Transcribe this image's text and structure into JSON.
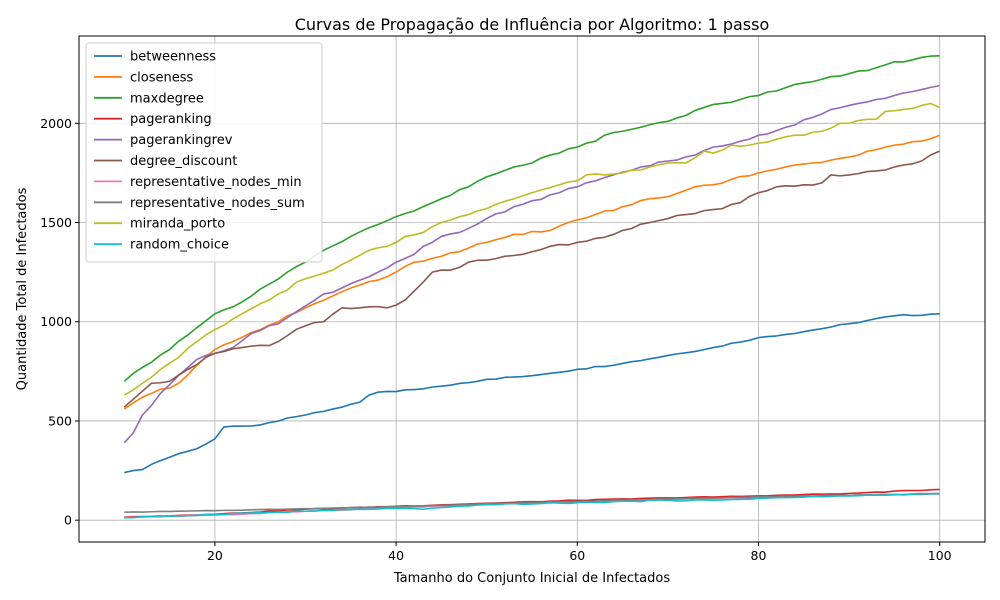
{
  "chart_data": {
    "type": "line",
    "title": "Curvas de Propagação de Influência por Algoritmo: 1 passo",
    "xlabel": "Tamanho do Conjunto Inicial de Infectados",
    "ylabel": "Quantidade Total de Infectados",
    "xlim": [
      5,
      105
    ],
    "ylim": [
      -110,
      2440
    ],
    "xticks": [
      20,
      40,
      60,
      80,
      100
    ],
    "yticks": [
      0,
      500,
      1000,
      1500,
      2000
    ],
    "grid": true,
    "legend": "top-left",
    "x_range": [
      10,
      100
    ],
    "series": [
      {
        "name": "betweenness",
        "color": "#1f77b4",
        "anchors": [
          [
            10,
            240
          ],
          [
            12,
            255
          ],
          [
            14,
            300
          ],
          [
            16,
            335
          ],
          [
            18,
            360
          ],
          [
            20,
            410
          ],
          [
            21,
            470
          ],
          [
            25,
            480
          ],
          [
            28,
            515
          ],
          [
            30,
            530
          ],
          [
            33,
            560
          ],
          [
            36,
            595
          ],
          [
            37,
            630
          ],
          [
            38,
            645
          ],
          [
            40,
            648
          ],
          [
            45,
            675
          ],
          [
            50,
            710
          ],
          [
            55,
            728
          ],
          [
            57,
            740
          ],
          [
            60,
            760
          ],
          [
            65,
            790
          ],
          [
            70,
            830
          ],
          [
            75,
            870
          ],
          [
            80,
            920
          ],
          [
            85,
            950
          ],
          [
            90,
            990
          ],
          [
            95,
            1030
          ],
          [
            100,
            1040
          ]
        ],
        "noise": 4
      },
      {
        "name": "closeness",
        "color": "#ff7f0e",
        "anchors": [
          [
            10,
            560
          ],
          [
            12,
            620
          ],
          [
            14,
            660
          ],
          [
            15,
            665
          ],
          [
            16,
            690
          ],
          [
            18,
            780
          ],
          [
            20,
            860
          ],
          [
            22,
            900
          ],
          [
            25,
            960
          ],
          [
            27,
            1000
          ],
          [
            28,
            1030
          ],
          [
            30,
            1070
          ],
          [
            33,
            1130
          ],
          [
            35,
            1170
          ],
          [
            38,
            1210
          ],
          [
            40,
            1250
          ],
          [
            42,
            1300
          ],
          [
            45,
            1330
          ],
          [
            50,
            1400
          ],
          [
            53,
            1440
          ],
          [
            57,
            1460
          ],
          [
            59,
            1500
          ],
          [
            62,
            1540
          ],
          [
            66,
            1590
          ],
          [
            68,
            1620
          ],
          [
            70,
            1630
          ],
          [
            73,
            1680
          ],
          [
            75,
            1690
          ],
          [
            80,
            1750
          ],
          [
            83,
            1780
          ],
          [
            86,
            1800
          ],
          [
            90,
            1830
          ],
          [
            95,
            1890
          ],
          [
            98,
            1910
          ],
          [
            100,
            1940
          ]
        ],
        "noise": 6
      },
      {
        "name": "maxdegree",
        "color": "#2ca02c",
        "anchors": [
          [
            10,
            700
          ],
          [
            12,
            770
          ],
          [
            15,
            860
          ],
          [
            18,
            970
          ],
          [
            20,
            1040
          ],
          [
            23,
            1100
          ],
          [
            26,
            1190
          ],
          [
            28,
            1250
          ],
          [
            30,
            1300
          ],
          [
            32,
            1360
          ],
          [
            35,
            1430
          ],
          [
            38,
            1490
          ],
          [
            40,
            1530
          ],
          [
            43,
            1580
          ],
          [
            45,
            1620
          ],
          [
            48,
            1680
          ],
          [
            50,
            1730
          ],
          [
            53,
            1780
          ],
          [
            55,
            1800
          ],
          [
            57,
            1840
          ],
          [
            60,
            1880
          ],
          [
            62,
            1910
          ],
          [
            63,
            1940
          ],
          [
            65,
            1960
          ],
          [
            67,
            1980
          ],
          [
            70,
            2010
          ],
          [
            72,
            2040
          ],
          [
            74,
            2080
          ],
          [
            76,
            2100
          ],
          [
            78,
            2120
          ],
          [
            80,
            2140
          ],
          [
            83,
            2180
          ],
          [
            86,
            2210
          ],
          [
            90,
            2250
          ],
          [
            93,
            2280
          ],
          [
            95,
            2310
          ],
          [
            97,
            2320
          ],
          [
            100,
            2340
          ]
        ],
        "noise": 6
      },
      {
        "name": "pageranking",
        "color": "#d62728",
        "anchors": [
          [
            10,
            15
          ],
          [
            20,
            30
          ],
          [
            30,
            55
          ],
          [
            40,
            70
          ],
          [
            50,
            85
          ],
          [
            60,
            100
          ],
          [
            70,
            112
          ],
          [
            80,
            122
          ],
          [
            90,
            135
          ],
          [
            100,
            155
          ]
        ],
        "noise": 2
      },
      {
        "name": "pagerankingrev",
        "color": "#9467bd",
        "anchors": [
          [
            10,
            390
          ],
          [
            11,
            440
          ],
          [
            12,
            530
          ],
          [
            14,
            640
          ],
          [
            16,
            730
          ],
          [
            18,
            810
          ],
          [
            20,
            840
          ],
          [
            22,
            870
          ],
          [
            24,
            940
          ],
          [
            27,
            990
          ],
          [
            30,
            1080
          ],
          [
            32,
            1140
          ],
          [
            34,
            1170
          ],
          [
            36,
            1210
          ],
          [
            38,
            1250
          ],
          [
            40,
            1300
          ],
          [
            42,
            1340
          ],
          [
            43,
            1380
          ],
          [
            45,
            1430
          ],
          [
            47,
            1450
          ],
          [
            50,
            1520
          ],
          [
            53,
            1580
          ],
          [
            55,
            1610
          ],
          [
            58,
            1650
          ],
          [
            60,
            1680
          ],
          [
            62,
            1710
          ],
          [
            64,
            1740
          ],
          [
            67,
            1780
          ],
          [
            70,
            1810
          ],
          [
            73,
            1840
          ],
          [
            75,
            1880
          ],
          [
            78,
            1910
          ],
          [
            80,
            1940
          ],
          [
            83,
            1980
          ],
          [
            86,
            2030
          ],
          [
            88,
            2070
          ],
          [
            90,
            2090
          ],
          [
            93,
            2120
          ],
          [
            95,
            2140
          ],
          [
            98,
            2170
          ],
          [
            100,
            2190
          ]
        ],
        "noise": 7
      },
      {
        "name": "degree_discount",
        "color": "#8c564b",
        "anchors": [
          [
            10,
            570
          ],
          [
            12,
            650
          ],
          [
            13,
            690
          ],
          [
            15,
            700
          ],
          [
            17,
            760
          ],
          [
            19,
            820
          ],
          [
            21,
            850
          ],
          [
            23,
            870
          ],
          [
            26,
            880
          ],
          [
            28,
            930
          ],
          [
            30,
            980
          ],
          [
            32,
            1000
          ],
          [
            34,
            1070
          ],
          [
            36,
            1070
          ],
          [
            39,
            1070
          ],
          [
            41,
            1110
          ],
          [
            43,
            1200
          ],
          [
            44,
            1250
          ],
          [
            46,
            1260
          ],
          [
            48,
            1300
          ],
          [
            50,
            1310
          ],
          [
            52,
            1330
          ],
          [
            54,
            1340
          ],
          [
            57,
            1380
          ],
          [
            60,
            1400
          ],
          [
            62,
            1420
          ],
          [
            64,
            1440
          ],
          [
            66,
            1470
          ],
          [
            68,
            1500
          ],
          [
            70,
            1520
          ],
          [
            72,
            1540
          ],
          [
            74,
            1560
          ],
          [
            76,
            1570
          ],
          [
            78,
            1600
          ],
          [
            80,
            1650
          ],
          [
            82,
            1680
          ],
          [
            85,
            1690
          ],
          [
            87,
            1700
          ],
          [
            88,
            1740
          ],
          [
            90,
            1740
          ],
          [
            93,
            1760
          ],
          [
            95,
            1780
          ],
          [
            98,
            1810
          ],
          [
            100,
            1860
          ]
        ],
        "noise": 7
      },
      {
        "name": "representative_nodes_min",
        "color": "#e377c2",
        "anchors": [
          [
            10,
            12
          ],
          [
            20,
            25
          ],
          [
            30,
            45
          ],
          [
            40,
            62
          ],
          [
            50,
            80
          ],
          [
            60,
            92
          ],
          [
            70,
            105
          ],
          [
            80,
            115
          ],
          [
            90,
            125
          ],
          [
            100,
            135
          ]
        ],
        "noise": 2
      },
      {
        "name": "representative_nodes_sum",
        "color": "#7f7f7f",
        "anchors": [
          [
            10,
            40
          ],
          [
            20,
            48
          ],
          [
            30,
            58
          ],
          [
            40,
            68
          ],
          [
            50,
            82
          ],
          [
            60,
            94
          ],
          [
            70,
            106
          ],
          [
            80,
            118
          ],
          [
            90,
            125
          ],
          [
            100,
            132
          ]
        ],
        "noise": 1
      },
      {
        "name": "miranda_porto",
        "color": "#bcbd22",
        "anchors": [
          [
            10,
            630
          ],
          [
            12,
            690
          ],
          [
            14,
            760
          ],
          [
            16,
            820
          ],
          [
            18,
            900
          ],
          [
            20,
            960
          ],
          [
            23,
            1040
          ],
          [
            26,
            1110
          ],
          [
            28,
            1160
          ],
          [
            29,
            1200
          ],
          [
            31,
            1230
          ],
          [
            33,
            1260
          ],
          [
            35,
            1310
          ],
          [
            37,
            1360
          ],
          [
            39,
            1380
          ],
          [
            41,
            1430
          ],
          [
            43,
            1450
          ],
          [
            45,
            1500
          ],
          [
            48,
            1540
          ],
          [
            50,
            1570
          ],
          [
            53,
            1620
          ],
          [
            55,
            1650
          ],
          [
            58,
            1690
          ],
          [
            60,
            1710
          ],
          [
            61,
            1740
          ],
          [
            63,
            1740
          ],
          [
            65,
            1750
          ],
          [
            68,
            1780
          ],
          [
            70,
            1800
          ],
          [
            72,
            1800
          ],
          [
            74,
            1860
          ],
          [
            75,
            1850
          ],
          [
            77,
            1890
          ],
          [
            79,
            1890
          ],
          [
            80,
            1900
          ],
          [
            82,
            1920
          ],
          [
            84,
            1940
          ],
          [
            85,
            1940
          ],
          [
            87,
            1960
          ],
          [
            89,
            2000
          ],
          [
            90,
            2000
          ],
          [
            92,
            2020
          ],
          [
            93,
            2020
          ],
          [
            94,
            2060
          ],
          [
            96,
            2070
          ],
          [
            98,
            2090
          ],
          [
            99,
            2100
          ],
          [
            100,
            2080
          ]
        ],
        "noise": 6
      },
      {
        "name": "random_choice",
        "color": "#17becf",
        "anchors": [
          [
            10,
            12
          ],
          [
            20,
            30
          ],
          [
            30,
            45
          ],
          [
            40,
            60
          ],
          [
            43,
            55
          ],
          [
            50,
            78
          ],
          [
            60,
            88
          ],
          [
            70,
            100
          ],
          [
            75,
            100
          ],
          [
            80,
            110
          ],
          [
            90,
            122
          ],
          [
            100,
            135
          ]
        ],
        "noise": 3
      }
    ]
  }
}
